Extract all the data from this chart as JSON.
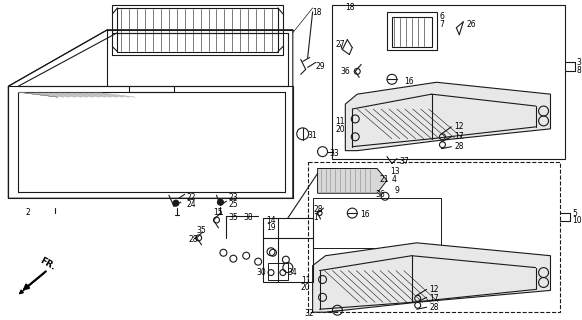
{
  "background_color": "#ffffff",
  "line_color": "#1a1a1a",
  "fig_width": 5.82,
  "fig_height": 3.2,
  "dpi": 100
}
